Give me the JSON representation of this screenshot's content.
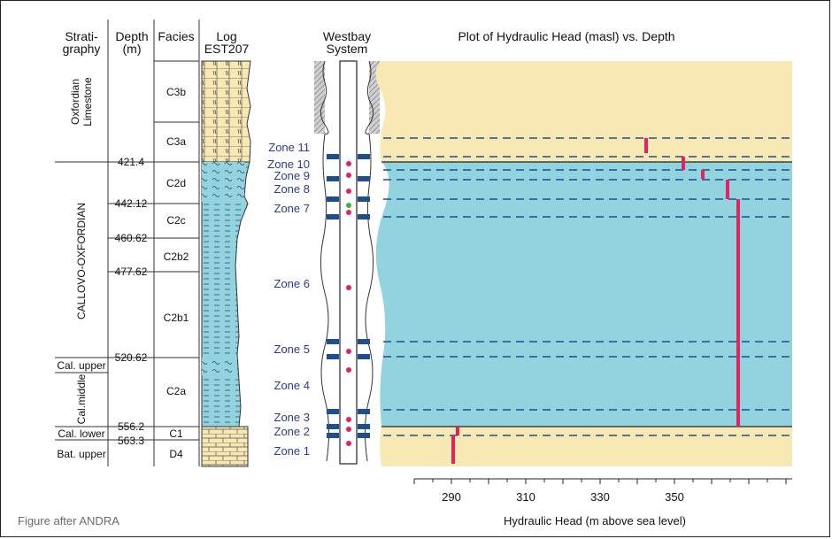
{
  "headers": {
    "stratigraphy": [
      "Strati-",
      "graphy"
    ],
    "depth": [
      "Depth",
      "(m)"
    ],
    "facies": "Facies",
    "log": [
      "Log",
      "EST207"
    ],
    "westbay": [
      "Westbay",
      "System"
    ],
    "plot_title": "Plot of Hydraulic Head (masl) vs. Depth"
  },
  "stratigraphy": {
    "oxfordian": [
      "Oxfordian",
      "Limestone"
    ],
    "callovo": "CALLOVO-OXFORDIAN",
    "cal_upper": "Cal. upper",
    "cal_middle": "Cal.middle",
    "cal_lower": "Cal. lower",
    "bat_upper": "Bat. upper"
  },
  "depths": [
    "421.4",
    "442.12",
    "460.62",
    "477.62",
    "520.62",
    "556.2",
    "563.3"
  ],
  "facies": [
    "C3b",
    "C3a",
    "C2d",
    "C2c",
    "C2b2",
    "C2b1",
    "C2a",
    "C1",
    "D4"
  ],
  "zones": [
    "Zone 11",
    "Zone 10",
    "Zone 9",
    "Zone 8",
    "Zone 7",
    "Zone 6",
    "Zone 5",
    "Zone 4",
    "Zone 3",
    "Zone 2",
    "Zone 1"
  ],
  "footer": "Figure after ANDRA",
  "colors": {
    "limestone": "#f8e8b4",
    "clay": "#93d3e0",
    "marker": "#e0245e",
    "packer": "#1f4e8c",
    "zone_text": "#2b3a8f"
  },
  "chart_data": {
    "type": "scatter",
    "title": "Plot of Hydraulic Head (masl) vs. Depth",
    "xlabel": "Hydraulic Head (m above sea level)",
    "xlim": [
      280,
      360
    ],
    "xticks": [
      "290",
      "310",
      "330",
      "350"
    ],
    "series": [
      {
        "zone": "Zone 11",
        "head": 329
      },
      {
        "zone": "Zone 10",
        "head": 337
      },
      {
        "zone": "Zone 9",
        "head": 341
      },
      {
        "zone": "Zone 8",
        "head": 346
      },
      {
        "zone": "Zone 7-3",
        "head": 348.5
      },
      {
        "zone": "Zone 2",
        "head": 289
      },
      {
        "zone": "Zone 1",
        "head": 288
      }
    ]
  }
}
